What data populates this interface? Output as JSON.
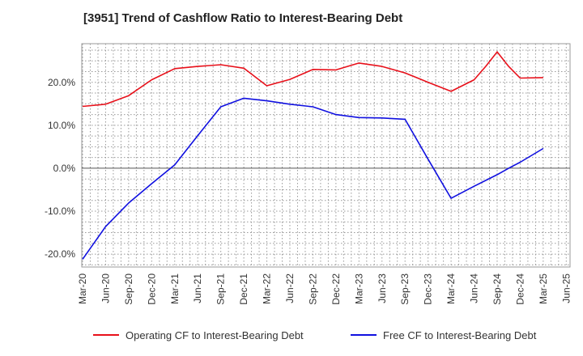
{
  "chart_data": {
    "type": "line",
    "title": "[3951]  Trend of Cashflow Ratio to Interest-Bearing Debt",
    "xlabel": "",
    "ylabel": "",
    "categories": [
      "Mar-20",
      "Jun-20",
      "Sep-20",
      "Dec-20",
      "Mar-21",
      "Jun-21",
      "Sep-21",
      "Dec-21",
      "Mar-22",
      "Jun-22",
      "Sep-22",
      "Dec-22",
      "Mar-23",
      "Jun-23",
      "Sep-23",
      "Dec-23",
      "Mar-24",
      "Jun-24",
      "Sep-24",
      "Dec-24",
      "Mar-25",
      "Jun-25"
    ],
    "ylim": [
      -23,
      29
    ],
    "yticks": [
      -20,
      -10,
      0,
      10,
      20
    ],
    "ytick_labels": [
      "-20.0%",
      "-10.0%",
      "0.0%",
      "10.0%",
      "20.0%"
    ],
    "grid": true,
    "legend_position": "bottom",
    "series": [
      {
        "name": "Operating CF to Interest-Bearing Debt",
        "color": "#e8101a",
        "points": [
          [
            0,
            14.4
          ],
          [
            1,
            14.9
          ],
          [
            2,
            16.9
          ],
          [
            3,
            20.6
          ],
          [
            4,
            23.2
          ],
          [
            5,
            23.7
          ],
          [
            6,
            24.1
          ],
          [
            7,
            23.3
          ],
          [
            8,
            19.2
          ],
          [
            9,
            20.7
          ],
          [
            10,
            23.0
          ],
          [
            11,
            22.9
          ],
          [
            12,
            24.5
          ],
          [
            13,
            23.7
          ],
          [
            14,
            22.2
          ],
          [
            15,
            20.0
          ],
          [
            16,
            17.9
          ],
          [
            17,
            20.6
          ],
          [
            17.5,
            23.7
          ],
          [
            18,
            27.1
          ],
          [
            18.5,
            23.7
          ],
          [
            19,
            21.0
          ],
          [
            20,
            21.1
          ]
        ]
      },
      {
        "name": "Free CF to Interest-Bearing Debt",
        "color": "#1010e0",
        "points": [
          [
            0,
            -21.2
          ],
          [
            1,
            -13.6
          ],
          [
            2,
            -8.1
          ],
          [
            3,
            -3.6
          ],
          [
            4,
            0.8
          ],
          [
            5,
            7.6
          ],
          [
            6,
            14.3
          ],
          [
            7,
            16.3
          ],
          [
            8,
            15.7
          ],
          [
            9,
            14.9
          ],
          [
            10,
            14.3
          ],
          [
            11,
            12.5
          ],
          [
            12,
            11.8
          ],
          [
            13,
            11.7
          ],
          [
            14,
            11.4
          ],
          [
            15,
            2.1
          ],
          [
            16,
            -7.0
          ],
          [
            17,
            -4.2
          ],
          [
            18,
            -1.5
          ],
          [
            18.5,
            0.0
          ],
          [
            19,
            1.4
          ],
          [
            20,
            4.6
          ]
        ]
      }
    ]
  }
}
